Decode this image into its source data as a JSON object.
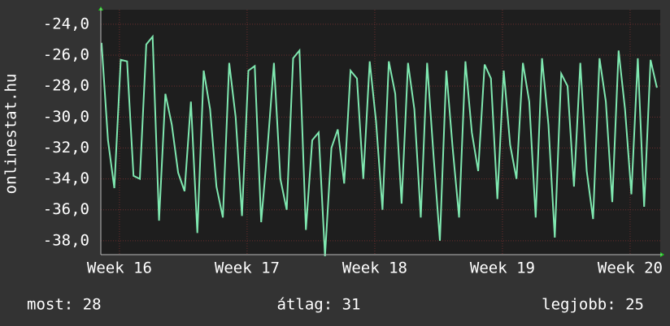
{
  "chart_data": {
    "type": "line",
    "y_label": "onlinestat.hu",
    "x": [
      15.86,
      15.91,
      15.96,
      16.01,
      16.06,
      16.11,
      16.16,
      16.21,
      16.26,
      16.31,
      16.36,
      16.41,
      16.46,
      16.51,
      16.56,
      16.61,
      16.66,
      16.71,
      16.76,
      16.81,
      16.86,
      16.91,
      16.96,
      17.01,
      17.06,
      17.11,
      17.16,
      17.21,
      17.26,
      17.31,
      17.36,
      17.41,
      17.46,
      17.51,
      17.56,
      17.61,
      17.66,
      17.71,
      17.76,
      17.81,
      17.86,
      17.91,
      17.96,
      18.01,
      18.06,
      18.11,
      18.16,
      18.21,
      18.26,
      18.31,
      18.36,
      18.41,
      18.46,
      18.51,
      18.56,
      18.61,
      18.66,
      18.71,
      18.76,
      18.81,
      18.86,
      18.91,
      18.96,
      19.01,
      19.06,
      19.11,
      19.16,
      19.21,
      19.26,
      19.31,
      19.36,
      19.41,
      19.46,
      19.51,
      19.56,
      19.61,
      19.66,
      19.71,
      19.76,
      19.81,
      19.86,
      19.91,
      19.96,
      20.01,
      20.06,
      20.11,
      20.16,
      20.21
    ],
    "values": [
      -25.2,
      -31.5,
      -34.6,
      -26.3,
      -26.4,
      -33.8,
      -34.0,
      -25.3,
      -24.8,
      -36.7,
      -28.5,
      -30.5,
      -33.6,
      -34.8,
      -29.0,
      -37.5,
      -27.0,
      -29.5,
      -34.5,
      -36.5,
      -26.5,
      -30.0,
      -36.4,
      -27.0,
      -26.7,
      -36.8,
      -32.0,
      -26.5,
      -34.0,
      -36.0,
      -26.2,
      -25.7,
      -37.3,
      -31.5,
      -31.0,
      -39.0,
      -32.0,
      -30.8,
      -34.3,
      -27.0,
      -27.5,
      -34.0,
      -26.4,
      -30.3,
      -36.0,
      -26.4,
      -28.5,
      -35.6,
      -26.5,
      -29.5,
      -36.5,
      -26.5,
      -32.5,
      -38.0,
      -27.0,
      -32.0,
      -36.5,
      -26.4,
      -31.0,
      -33.5,
      -26.6,
      -27.5,
      -35.3,
      -27.0,
      -31.8,
      -34.0,
      -26.5,
      -29.0,
      -36.5,
      -26.2,
      -30.5,
      -37.8,
      -27.2,
      -28.0,
      -34.5,
      -26.5,
      -33.5,
      -36.6,
      -26.2,
      -29.0,
      -35.5,
      -25.7,
      -29.5,
      -35.0,
      -26.2,
      -35.8,
      -26.3,
      -28.1
    ],
    "color": "#7fe8b0",
    "xlim": [
      15.854,
      20.236
    ],
    "xticks": [
      {
        "value": 16,
        "label": "Week 16"
      },
      {
        "value": 17,
        "label": "Week 17"
      },
      {
        "value": 18,
        "label": "Week 18"
      },
      {
        "value": 19,
        "label": "Week 19"
      },
      {
        "value": 20,
        "label": "Week 20"
      }
    ],
    "ylim": [
      -38.9,
      -23.06
    ],
    "yticks": [
      {
        "value": -38,
        "label": "-38,0"
      },
      {
        "value": -36,
        "label": "-36,0"
      },
      {
        "value": -34,
        "label": "-34,0"
      },
      {
        "value": -32,
        "label": "-32,0"
      },
      {
        "value": -30,
        "label": "-30,0"
      },
      {
        "value": -28,
        "label": "-28,0"
      },
      {
        "value": -26,
        "label": "-26,0"
      },
      {
        "value": -24,
        "label": "-24,0"
      }
    ],
    "grid": true,
    "annotations": [
      "most: 28",
      "átlag: 31",
      "legjobb: 25"
    ]
  }
}
